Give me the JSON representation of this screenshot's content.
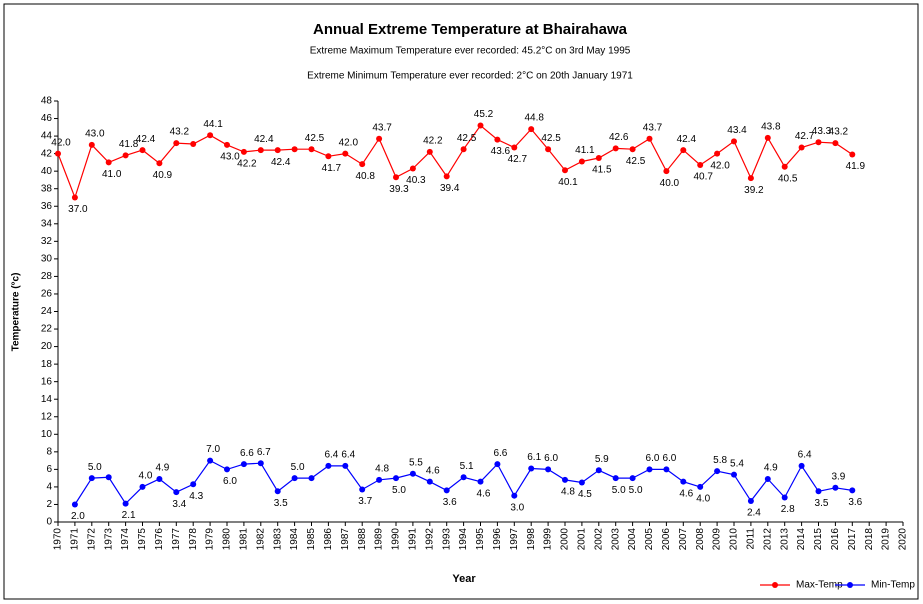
{
  "chart_data": {
    "type": "line",
    "title": "Annual Extreme Temperature at Bhairahawa",
    "subtitles": [
      "Extreme Maximum Temperature ever recorded: 45.2°C on 3rd May 1995",
      "Extreme Minimum Temperature ever recorded: 2°C on  20th January 1971"
    ],
    "x_label": "Year",
    "y_label": "Temperature (°c)",
    "categories": [
      "1970",
      "1971",
      "1972",
      "1973",
      "1974",
      "1975",
      "1976",
      "1977",
      "1978",
      "1979",
      "1980",
      "1981",
      "1982",
      "1983",
      "1984",
      "1985",
      "1986",
      "1987",
      "1988",
      "1989",
      "1990",
      "1991",
      "1992",
      "1993",
      "1994",
      "1995",
      "1996",
      "1997",
      "1998",
      "1999",
      "2000",
      "2001",
      "2002",
      "2003",
      "2004",
      "2005",
      "2006",
      "2007",
      "2008",
      "2009",
      "2010",
      "2011",
      "2012",
      "2013",
      "2014",
      "2015",
      "2016",
      "2017",
      "2018",
      "2019",
      "2020"
    ],
    "ylim": [
      0,
      48
    ],
    "yticks": [
      0,
      2,
      4,
      6,
      8,
      10,
      12,
      14,
      16,
      18,
      20,
      22,
      24,
      26,
      28,
      30,
      32,
      34,
      36,
      38,
      40,
      42,
      44,
      46,
      48
    ],
    "grid": false,
    "legend": "bottom-right",
    "series": [
      {
        "name": "Max-Temp",
        "color": "#ff0000",
        "values": [
          42.0,
          37.0,
          43.0,
          41.0,
          41.8,
          42.4,
          40.9,
          43.2,
          43.1,
          44.1,
          43.0,
          42.2,
          42.4,
          42.4,
          42.5,
          42.5,
          41.7,
          42.0,
          40.8,
          43.7,
          39.3,
          40.3,
          42.2,
          39.4,
          42.5,
          45.2,
          43.6,
          42.7,
          44.8,
          42.5,
          40.1,
          41.1,
          41.5,
          42.6,
          42.5,
          43.7,
          40.0,
          42.4,
          40.7,
          42.0,
          43.4,
          39.2,
          43.8,
          40.5,
          42.7,
          43.3,
          43.2,
          41.9,
          null,
          null,
          null
        ],
        "value_labels": [
          "42.0",
          "37.0",
          "43.0",
          "41.0",
          "41.8",
          "42.4",
          "40.9",
          "43.2",
          null,
          "44.1",
          "43.0",
          "42.2",
          "42.4",
          "42.4",
          null,
          "42.5",
          "41.7",
          "42.0",
          "40.8",
          "43.7",
          "39.3",
          "40.3",
          "42.2",
          "39.4",
          "42.5",
          "45.2",
          "43.6",
          "42.7",
          "44.8",
          "42.5",
          "40.1",
          "41.1",
          "41.5",
          "42.6",
          "42.5",
          "43.7",
          "40.0",
          "42.4",
          "40.7",
          "42.0",
          "43.4",
          "39.2",
          "43.8",
          "40.5",
          "42.7",
          "43.3",
          "43.2",
          "41.9",
          null,
          null,
          null
        ]
      },
      {
        "name": "Min-Temp",
        "color": "#0000ff",
        "values": [
          null,
          2.0,
          5.0,
          5.1,
          2.1,
          4.0,
          4.9,
          3.4,
          4.3,
          7.0,
          6.0,
          6.6,
          6.7,
          3.5,
          5.0,
          5.0,
          6.4,
          6.4,
          3.7,
          4.8,
          5.0,
          5.5,
          4.6,
          3.6,
          5.1,
          4.6,
          6.6,
          3.0,
          6.1,
          6.0,
          4.8,
          4.5,
          5.9,
          5.0,
          5.0,
          6.0,
          6.0,
          4.6,
          4.0,
          5.8,
          5.4,
          2.4,
          4.9,
          2.8,
          6.4,
          3.5,
          3.9,
          3.6,
          null,
          null,
          null
        ],
        "value_labels": [
          null,
          "2.0",
          "5.0",
          null,
          "2.1",
          "4.0",
          "4.9",
          "3.4",
          "4.3",
          "7.0",
          "6.0",
          "6.6",
          "6.7",
          "3.5",
          "5.0",
          null,
          "6.4",
          "6.4",
          "3.7",
          "4.8",
          "5.0",
          "5.5",
          "4.6",
          "3.6",
          "5.1",
          "4.6",
          "6.6",
          "3.0",
          "6.1",
          "6.0",
          "4.8",
          "4.5",
          "5.9",
          "5.0",
          "5.0",
          "6.0",
          "6.0",
          "4.6",
          "4.0",
          "5.8",
          "5.4",
          "2.4",
          "4.9",
          "2.8",
          "6.4",
          "3.5",
          "3.9",
          "3.6",
          null,
          null,
          null
        ]
      }
    ]
  }
}
